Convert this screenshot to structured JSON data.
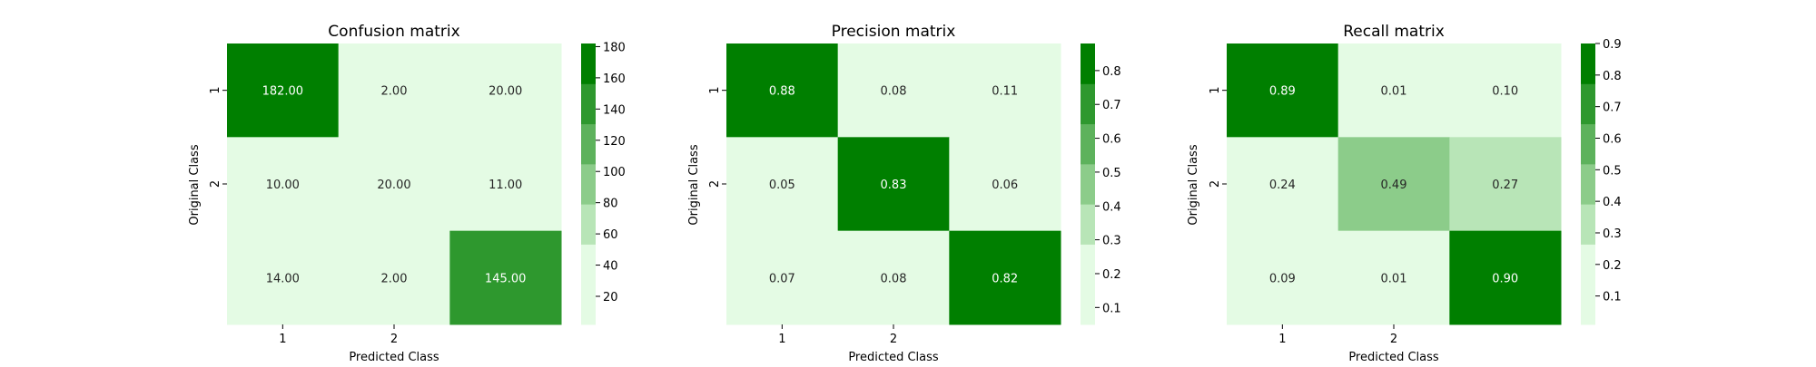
{
  "colors": {
    "light_text": "#ffffff",
    "dark_text": "#262626",
    "levels": [
      "#e4fbe4",
      "#b8e5b7",
      "#8ccc8a",
      "#5db25c",
      "#2e982e",
      "#007f00"
    ]
  },
  "chart_data": [
    {
      "type": "heatmap",
      "title": "Confusion matrix",
      "xlabel": "Predicted Class",
      "ylabel": "Original Class",
      "x_tick_labels": [
        "1",
        "2",
        ""
      ],
      "y_tick_labels": [
        "1",
        "2",
        ""
      ],
      "values": [
        [
          182,
          2,
          20
        ],
        [
          10,
          20,
          11
        ],
        [
          14,
          2,
          145
        ]
      ],
      "cell_labels": [
        [
          "182.00",
          "2.00",
          "20.00"
        ],
        [
          "10.00",
          "20.00",
          "11.00"
        ],
        [
          "14.00",
          "2.00",
          "145.00"
        ]
      ],
      "vmin": 2,
      "vmax": 182,
      "levels": 7,
      "colorbar_ticks": [
        20,
        40,
        60,
        80,
        100,
        120,
        140,
        160,
        180
      ],
      "colorbar_tick_labels": [
        "20",
        "40",
        "60",
        "80",
        "100",
        "120",
        "140",
        "160",
        "180"
      ]
    },
    {
      "type": "heatmap",
      "title": "Precision matrix",
      "xlabel": "Predicted Class",
      "ylabel": "Original Class",
      "x_tick_labels": [
        "1",
        "2",
        ""
      ],
      "y_tick_labels": [
        "1",
        "2",
        ""
      ],
      "values": [
        [
          0.88,
          0.08,
          0.11
        ],
        [
          0.05,
          0.83,
          0.06
        ],
        [
          0.07,
          0.08,
          0.82
        ]
      ],
      "cell_labels": [
        [
          "0.88",
          "0.08",
          "0.11"
        ],
        [
          "0.05",
          "0.83",
          "0.06"
        ],
        [
          "0.07",
          "0.08",
          "0.82"
        ]
      ],
      "vmin": 0.05,
      "vmax": 0.88,
      "levels": 7,
      "colorbar_ticks": [
        0.1,
        0.2,
        0.3,
        0.4,
        0.5,
        0.6,
        0.7,
        0.8
      ],
      "colorbar_tick_labels": [
        "0.1",
        "0.2",
        "0.3",
        "0.4",
        "0.5",
        "0.6",
        "0.7",
        "0.8"
      ]
    },
    {
      "type": "heatmap",
      "title": "Recall matrix",
      "xlabel": "Predicted Class",
      "ylabel": "Original Class",
      "x_tick_labels": [
        "1",
        "2",
        ""
      ],
      "y_tick_labels": [
        "1",
        "2",
        ""
      ],
      "values": [
        [
          0.89,
          0.01,
          0.1
        ],
        [
          0.24,
          0.49,
          0.27
        ],
        [
          0.09,
          0.01,
          0.9
        ]
      ],
      "cell_labels": [
        [
          "0.89",
          "0.01",
          "0.10"
        ],
        [
          "0.24",
          "0.49",
          "0.27"
        ],
        [
          "0.09",
          "0.01",
          "0.90"
        ]
      ],
      "vmin": 0.01,
      "vmax": 0.9,
      "levels": 7,
      "colorbar_ticks": [
        0.1,
        0.2,
        0.3,
        0.4,
        0.5,
        0.6,
        0.7,
        0.8,
        0.9
      ],
      "colorbar_tick_labels": [
        "0.1",
        "0.2",
        "0.3",
        "0.4",
        "0.5",
        "0.6",
        "0.7",
        "0.8",
        "0.9"
      ]
    }
  ]
}
